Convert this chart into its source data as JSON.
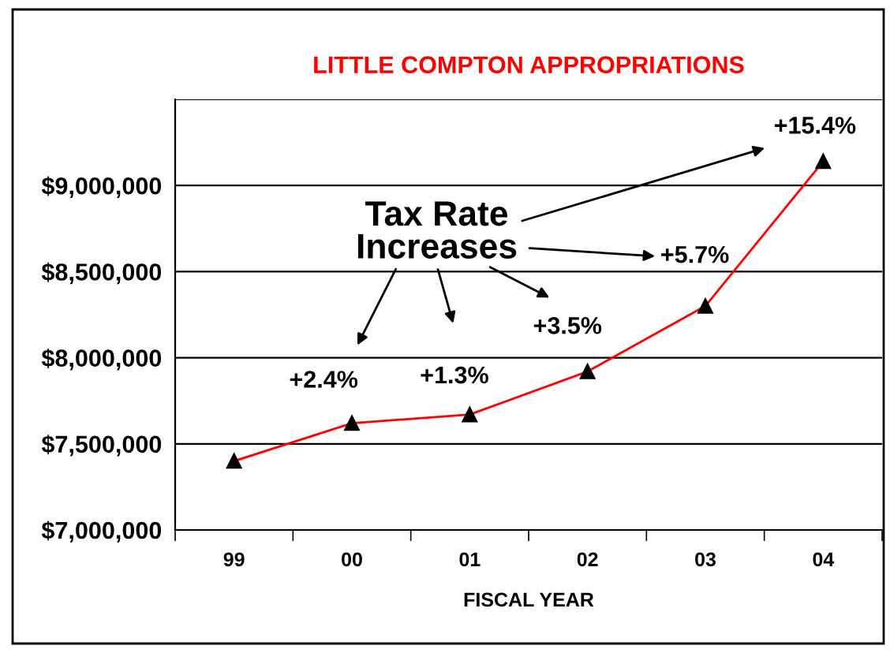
{
  "chart_data": {
    "type": "line",
    "title": "LITTLE COMPTON APPROPRIATIONS",
    "xlabel": "FISCAL YEAR",
    "categories": [
      "99",
      "00",
      "01",
      "02",
      "03",
      "04"
    ],
    "series": [
      {
        "color": "#ff0000",
        "values": [
          7400000,
          7620000,
          7670000,
          7920000,
          8300000,
          9140000
        ]
      }
    ],
    "marker": "triangle",
    "ylim": [
      7000000,
      9500000
    ],
    "yticks": [
      {
        "value": 7000000,
        "label": "$7,000,000"
      },
      {
        "value": 7500000,
        "label": "$7,500,000"
      },
      {
        "value": 8000000,
        "label": "$8,000,000"
      },
      {
        "value": 8500000,
        "label": "$8,500,000"
      },
      {
        "value": 9000000,
        "label": "$9,000,000"
      },
      {
        "value": 9500000,
        "label": null
      }
    ],
    "grid": "y",
    "legend": false,
    "annotations": [
      "Tax Rate\nIncreases",
      "+2.4%",
      "+1.3%",
      "+3.5%",
      "+5.7%",
      "+15.4%"
    ]
  }
}
